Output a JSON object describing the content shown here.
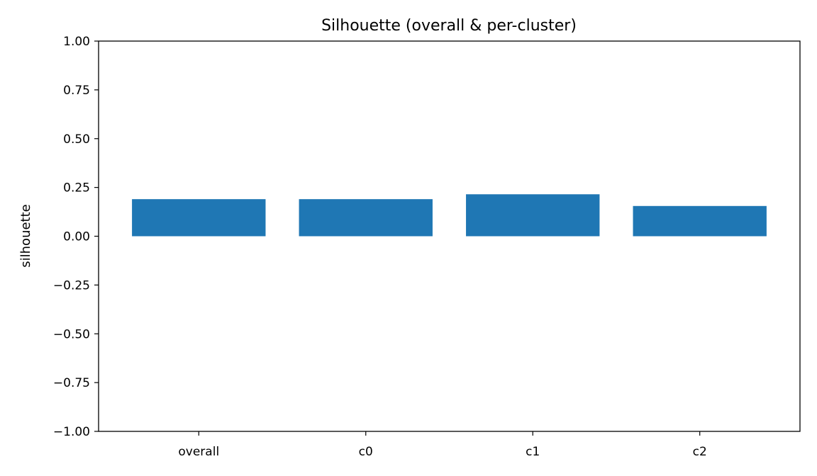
{
  "chart_data": {
    "type": "bar",
    "title": "Silhouette (overall & per-cluster)",
    "xlabel": "",
    "ylabel": "silhouette",
    "categories": [
      "overall",
      "c0",
      "c1",
      "c2"
    ],
    "values": [
      0.19,
      0.19,
      0.215,
      0.155
    ],
    "ylim": [
      -1.0,
      1.0
    ],
    "yticks": [
      -1.0,
      -0.75,
      -0.5,
      -0.25,
      0.0,
      0.25,
      0.5,
      0.75,
      1.0
    ],
    "ytick_labels": [
      "−1.00",
      "−0.75",
      "−0.50",
      "−0.25",
      "0.00",
      "0.25",
      "0.50",
      "0.75",
      "1.00"
    ],
    "grid": false,
    "bar_color": "#1f77b4"
  }
}
